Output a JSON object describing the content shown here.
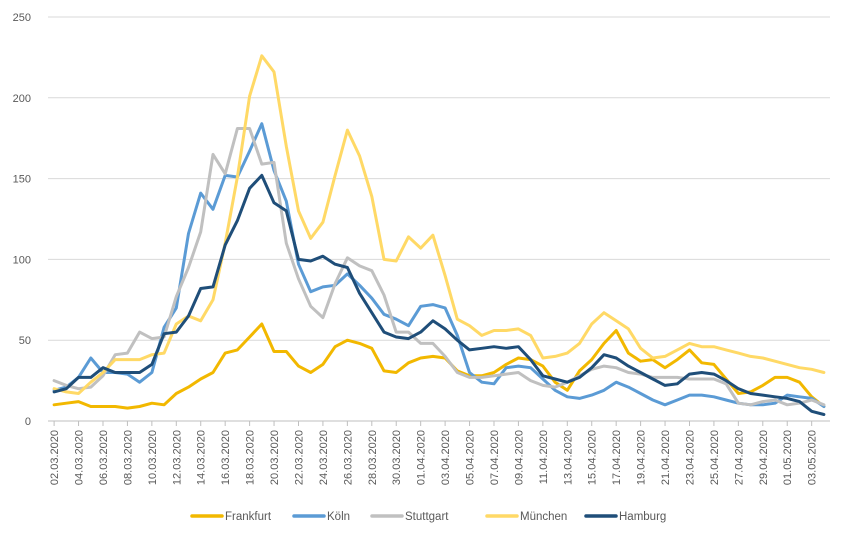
{
  "chart_data": {
    "type": "line",
    "title": "",
    "xlabel": "",
    "ylabel": "",
    "ylim": [
      0,
      250
    ],
    "yticks": [
      0,
      50,
      100,
      150,
      200,
      250
    ],
    "grid": true,
    "legend_position": "bottom",
    "x_tick_labels": [
      "02.03.2020",
      "04.03.2020",
      "06.03.2020",
      "08.03.2020",
      "10.03.2020",
      "12.03.2020",
      "14.03.2020",
      "16.03.2020",
      "18.03.2020",
      "20.03.2020",
      "22.03.2020",
      "24.03.2020",
      "26.03.2020",
      "28.03.2020",
      "30.03.2020",
      "01.04.2020",
      "03.04.2020",
      "05.04.2020",
      "07.04.2020",
      "09.04.2020",
      "11.04.2020",
      "13.04.2020",
      "15.04.2020",
      "17.04.2020",
      "19.04.2020",
      "21.04.2020",
      "23.04.2020",
      "25.04.2020",
      "27.04.2020",
      "29.04.2020",
      "01.05.2020",
      "03.05.2020"
    ],
    "series": [
      {
        "name": "Frankfurt",
        "color": "#F2B800",
        "values": [
          10,
          11,
          12,
          9,
          9,
          9,
          8,
          9,
          11,
          10,
          17,
          21,
          26,
          30,
          42,
          44,
          52,
          60,
          43,
          43,
          34,
          30,
          35,
          46,
          50,
          48,
          45,
          31,
          30,
          36,
          39,
          40,
          39,
          31,
          28,
          28,
          30,
          35,
          39,
          38,
          34,
          24,
          19,
          31,
          38,
          48,
          56,
          42,
          37,
          38,
          33,
          38,
          44,
          36,
          35,
          26,
          17,
          18,
          22,
          27,
          27,
          24,
          15,
          9
        ]
      },
      {
        "name": "Köln",
        "color": "#5B9BD5",
        "values": [
          19,
          21,
          27,
          39,
          30,
          30,
          29,
          24,
          30,
          58,
          70,
          116,
          141,
          131,
          152,
          151,
          167,
          184,
          155,
          136,
          97,
          80,
          83,
          84,
          91,
          84,
          76,
          66,
          63,
          59,
          71,
          72,
          70,
          53,
          30,
          24,
          23,
          33,
          34,
          33,
          26,
          19,
          15,
          14,
          16,
          19,
          24,
          21,
          17,
          13,
          10,
          13,
          16,
          16,
          15,
          13,
          11,
          10,
          10,
          11,
          16,
          15,
          14,
          9
        ]
      },
      {
        "name": "Stuttgart",
        "color": "#C0C0C0",
        "values": [
          25,
          22,
          20,
          21,
          28,
          41,
          42,
          55,
          51,
          52,
          77,
          95,
          117,
          165,
          153,
          181,
          181,
          159,
          160,
          110,
          88,
          71,
          64,
          85,
          101,
          96,
          93,
          78,
          55,
          55,
          48,
          48,
          40,
          30,
          27,
          27,
          28,
          29,
          30,
          25,
          22,
          21,
          24,
          28,
          32,
          34,
          33,
          30,
          29,
          27,
          27,
          27,
          26,
          26,
          26,
          23,
          11,
          10,
          12,
          13,
          10,
          11,
          13,
          10
        ]
      },
      {
        "name": "München",
        "color": "#FFD966",
        "values": [
          20,
          18,
          17,
          24,
          30,
          38,
          38,
          38,
          41,
          42,
          60,
          65,
          62,
          75,
          110,
          151,
          201,
          226,
          216,
          170,
          130,
          113,
          123,
          152,
          180,
          164,
          139,
          100,
          99,
          114,
          107,
          115,
          90,
          63,
          59,
          53,
          56,
          56,
          57,
          53,
          39,
          40,
          42,
          48,
          60,
          67,
          62,
          57,
          45,
          39,
          40,
          44,
          48,
          46,
          46,
          44,
          42,
          40,
          39,
          37,
          35,
          33,
          32,
          30
        ]
      },
      {
        "name": "Hamburg",
        "color": "#1F4E79",
        "values": [
          18,
          20,
          27,
          27,
          33,
          30,
          30,
          30,
          35,
          54,
          55,
          65,
          82,
          83,
          109,
          124,
          144,
          152,
          135,
          130,
          100,
          99,
          102,
          97,
          95,
          79,
          67,
          55,
          52,
          51,
          55,
          62,
          57,
          50,
          44,
          45,
          46,
          45,
          46,
          38,
          28,
          26,
          24,
          27,
          33,
          41,
          39,
          34,
          30,
          26,
          22,
          23,
          29,
          30,
          29,
          25,
          20,
          17,
          16,
          15,
          14,
          12,
          6,
          4
        ]
      }
    ]
  }
}
